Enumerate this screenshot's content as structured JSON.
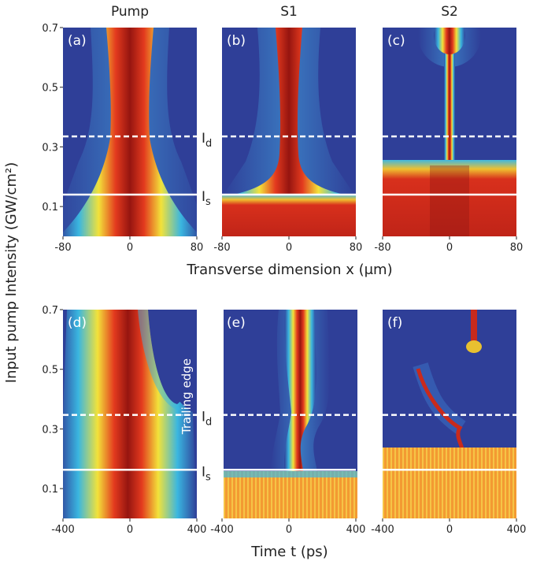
{
  "figure": {
    "column_titles": [
      "Pump",
      "S1",
      "S2"
    ],
    "y_label": "Input pump Intensity (GW/cm²)",
    "x_labels": [
      "Transverse dimension x (μm)",
      "Time t (ps)"
    ],
    "line_labels": [
      {
        "text": "I",
        "sub": "d"
      },
      {
        "text": "I",
        "sub": "s"
      }
    ]
  },
  "chart_data": [
    {
      "type": "heatmap",
      "panel_label": "(a)",
      "xlim": [
        -80,
        80
      ],
      "xticks": [
        -80,
        0,
        80
      ],
      "ylim": [
        0,
        0.7
      ],
      "yticks": [
        0.1,
        0.3,
        0.5,
        0.7
      ],
      "lines": [
        {
          "value": 0.335,
          "style": "dashed",
          "color": "#ffffff"
        },
        {
          "value": 0.14,
          "style": "solid",
          "color": "#ffffff"
        }
      ]
    },
    {
      "type": "heatmap",
      "panel_label": "(b)",
      "xlim": [
        -80,
        80
      ],
      "xticks": [
        -80,
        0,
        80
      ],
      "ylim": [
        0,
        0.7
      ],
      "lines": [
        {
          "value": 0.335,
          "style": "dashed",
          "color": "#ffffff"
        },
        {
          "value": 0.14,
          "style": "solid",
          "color": "#ffffff"
        }
      ]
    },
    {
      "type": "heatmap",
      "panel_label": "(c)",
      "xlim": [
        -80,
        80
      ],
      "xticks": [
        -80,
        0,
        80
      ],
      "ylim": [
        0,
        0.7
      ],
      "lines": [
        {
          "value": 0.335,
          "style": "dashed",
          "color": "#ffffff"
        },
        {
          "value": 0.14,
          "style": "solid",
          "color": "#ffffff"
        }
      ]
    },
    {
      "type": "heatmap",
      "panel_label": "(d)",
      "xlim": [
        -400,
        400
      ],
      "xticks": [
        -400,
        0,
        400
      ],
      "ylim": [
        0,
        0.7
      ],
      "yticks": [
        0.1,
        0.3,
        0.5,
        0.7
      ],
      "annotation": "Trailing edge",
      "lines": [
        {
          "value": 0.347,
          "style": "dashed",
          "color": "#ffffff"
        },
        {
          "value": 0.163,
          "style": "solid",
          "color": "#ffffff"
        }
      ]
    },
    {
      "type": "heatmap",
      "panel_label": "(e)",
      "xlim": [
        -400,
        400
      ],
      "xticks": [
        -400,
        0,
        400
      ],
      "ylim": [
        0,
        0.7
      ],
      "lines": [
        {
          "value": 0.347,
          "style": "dashed",
          "color": "#ffffff"
        },
        {
          "value": 0.163,
          "style": "solid",
          "color": "#ffffff"
        }
      ]
    },
    {
      "type": "heatmap",
      "panel_label": "(f)",
      "xlim": [
        -400,
        400
      ],
      "xticks": [
        -400,
        0,
        400
      ],
      "ylim": [
        0,
        0.7
      ],
      "lines": [
        {
          "value": 0.347,
          "style": "dashed",
          "color": "#ffffff"
        },
        {
          "value": 0.163,
          "style": "solid",
          "color": "#ffffff"
        }
      ]
    }
  ]
}
